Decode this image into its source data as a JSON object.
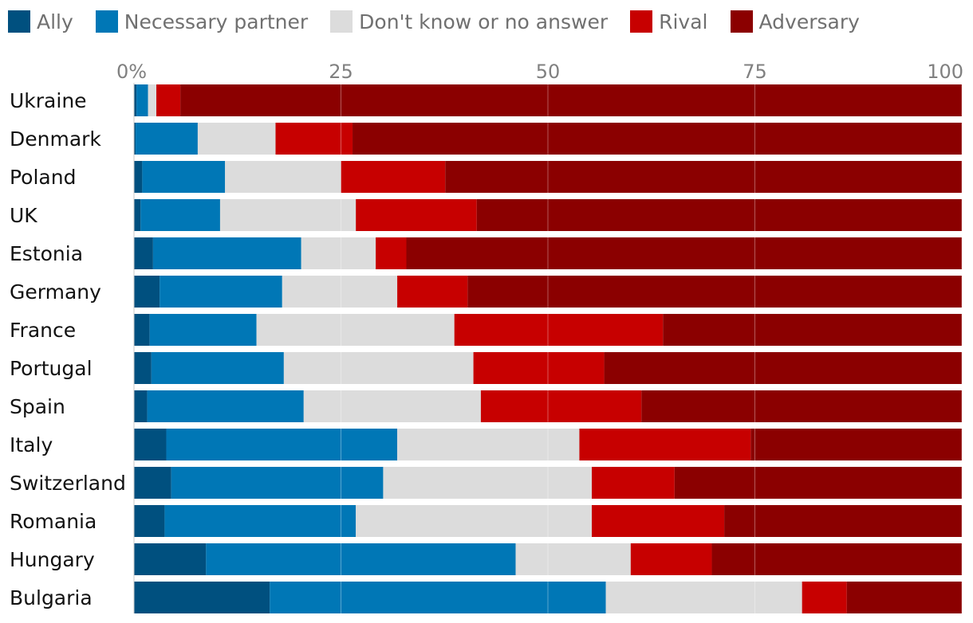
{
  "chart_data": {
    "type": "bar",
    "orientation": "horizontal",
    "stacked": true,
    "title": "",
    "xlabel": "",
    "ylabel": "",
    "xlim": [
      0,
      100
    ],
    "ticks": [
      0,
      25,
      50,
      75,
      100
    ],
    "tick_labels": [
      "0%",
      "25",
      "50",
      "75",
      "100"
    ],
    "legend_position": "top-left",
    "series_names": [
      "Ally",
      "Necessary partner",
      "Don't know or no answer",
      "Rival",
      "Adversary"
    ],
    "colors": [
      "#00507f",
      "#0077b6",
      "#dcdcdc",
      "#c70000",
      "#8b0000"
    ],
    "categories": [
      "Ukraine",
      "Denmark",
      "Poland",
      "UK",
      "Estonia",
      "Germany",
      "France",
      "Portugal",
      "Spain",
      "Italy",
      "Switzerland",
      "Romania",
      "Hungary",
      "Bulgaria"
    ],
    "series": [
      {
        "name": "Ally",
        "values": [
          0.3,
          0.2,
          1.0,
          0.8,
          2.3,
          3.1,
          1.9,
          2.1,
          1.6,
          3.9,
          4.5,
          3.7,
          8.7,
          16.4
        ]
      },
      {
        "name": "Necessary partner",
        "values": [
          1.4,
          7.5,
          10.0,
          9.6,
          17.9,
          14.8,
          12.9,
          16.0,
          18.9,
          27.9,
          25.6,
          23.1,
          37.4,
          40.6
        ]
      },
      {
        "name": "Don't know or no answer",
        "values": [
          1.0,
          9.4,
          14.0,
          16.4,
          9.0,
          13.9,
          23.9,
          22.9,
          21.4,
          22.0,
          25.2,
          28.5,
          13.9,
          23.7
        ]
      },
      {
        "name": "Rival",
        "values": [
          2.9,
          9.3,
          12.6,
          14.6,
          3.7,
          8.5,
          25.2,
          15.8,
          19.4,
          20.7,
          10.0,
          16.0,
          9.8,
          5.4
        ]
      },
      {
        "name": "Adversary",
        "values": [
          94.4,
          73.6,
          62.4,
          58.6,
          67.1,
          59.7,
          36.1,
          43.2,
          38.7,
          25.5,
          34.7,
          28.7,
          30.2,
          13.9
        ]
      }
    ]
  }
}
